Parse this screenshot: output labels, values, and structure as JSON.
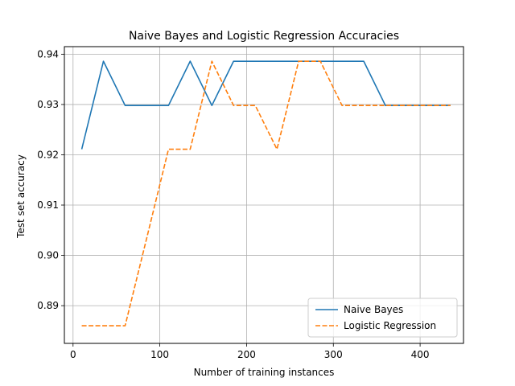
{
  "chart_data": {
    "type": "line",
    "title": "Naive Bayes and Logistic Regression Accuracies",
    "xlabel": "Number of training instances",
    "ylabel": "Test set accuracy",
    "xlim": [
      -10,
      450
    ],
    "ylim": [
      0.8825,
      0.9415
    ],
    "xticks": [
      0,
      100,
      200,
      300,
      400
    ],
    "xtick_labels": [
      "0",
      "100",
      "200",
      "300",
      "400"
    ],
    "yticks": [
      0.89,
      0.9,
      0.91,
      0.92,
      0.93,
      0.94
    ],
    "ytick_labels": [
      "0.89",
      "0.90",
      "0.91",
      "0.92",
      "0.93",
      "0.94"
    ],
    "grid": true,
    "legend_position": "lower-right",
    "x": [
      10,
      35,
      60,
      85,
      110,
      135,
      160,
      185,
      210,
      235,
      260,
      285,
      310,
      335,
      360,
      385,
      410,
      435
    ],
    "series": [
      {
        "name": "Naive Bayes",
        "color": "#1f77b4",
        "dash": "solid",
        "values": [
          0.9211,
          0.9386,
          0.9298,
          0.9298,
          0.9298,
          0.9386,
          0.9298,
          0.9386,
          0.9386,
          0.9386,
          0.9386,
          0.9386,
          0.9386,
          0.9386,
          0.9298,
          0.9298,
          0.9298,
          0.9298
        ]
      },
      {
        "name": "Logistic Regression",
        "color": "#ff7f0e",
        "dash": "dashed",
        "values": [
          0.886,
          0.886,
          0.886,
          0.9035,
          0.9211,
          0.9211,
          0.9386,
          0.9298,
          0.9298,
          0.9211,
          0.9386,
          0.9386,
          0.9298,
          0.9298,
          0.9298,
          0.9298,
          0.9298,
          0.9298
        ]
      }
    ]
  }
}
